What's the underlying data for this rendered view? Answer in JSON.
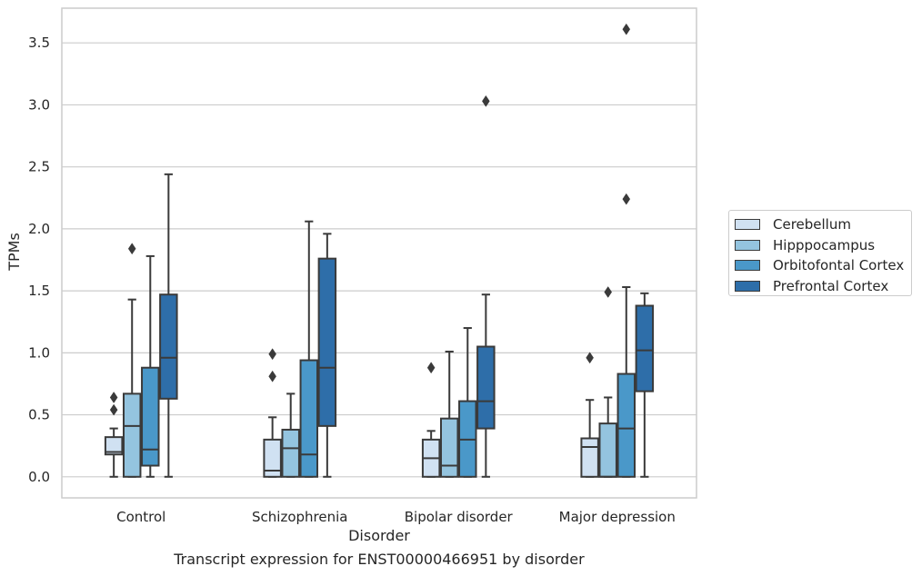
{
  "caption": "Transcript expression for ENST00000466951 by disorder",
  "legend": {
    "items": [
      {
        "label": "Cerebellum",
        "color": "#d0e1f2"
      },
      {
        "label": "Hipppocampus",
        "color": "#94c4df"
      },
      {
        "label": "Orbitofontal Cortex",
        "color": "#4a98c9"
      },
      {
        "label": "Prefrontal Cortex",
        "color": "#2e6ea9"
      }
    ]
  },
  "chart_data": {
    "type": "box",
    "title": "",
    "xlabel": "Disorder",
    "ylabel": "TPMs",
    "ylim": [
      -0.17,
      3.78
    ],
    "yticks": [
      "0.0",
      "0.5",
      "1.0",
      "1.5",
      "2.0",
      "2.5",
      "3.0",
      "3.5"
    ],
    "grid": "horizontal",
    "legend_position": "right",
    "categories": [
      "Control",
      "Schizophrenia",
      "Bipolar disorder",
      "Major depression"
    ],
    "series": [
      {
        "name": "Cerebellum",
        "boxes": [
          {
            "whisker_low": 0.0,
            "q1": 0.18,
            "median": 0.2,
            "q3": 0.32,
            "whisker_high": 0.39,
            "outliers": [
              0.54,
              0.64
            ]
          },
          {
            "whisker_low": 0.0,
            "q1": 0.0,
            "median": 0.05,
            "q3": 0.3,
            "whisker_high": 0.48,
            "outliers": [
              0.81,
              0.99
            ]
          },
          {
            "whisker_low": 0.0,
            "q1": 0.0,
            "median": 0.15,
            "q3": 0.3,
            "whisker_high": 0.37,
            "outliers": [
              0.88
            ]
          },
          {
            "whisker_low": 0.0,
            "q1": 0.0,
            "median": 0.24,
            "q3": 0.31,
            "whisker_high": 0.62,
            "outliers": [
              0.96
            ]
          }
        ]
      },
      {
        "name": "Hipppocampus",
        "boxes": [
          {
            "whisker_low": 0.0,
            "q1": 0.0,
            "median": 0.41,
            "q3": 0.67,
            "whisker_high": 1.43,
            "outliers": [
              1.84
            ]
          },
          {
            "whisker_low": 0.0,
            "q1": 0.0,
            "median": 0.23,
            "q3": 0.38,
            "whisker_high": 0.67,
            "outliers": []
          },
          {
            "whisker_low": 0.0,
            "q1": 0.0,
            "median": 0.09,
            "q3": 0.47,
            "whisker_high": 1.01,
            "outliers": []
          },
          {
            "whisker_low": 0.0,
            "q1": 0.0,
            "median": 0.0,
            "q3": 0.43,
            "whisker_high": 0.64,
            "outliers": [
              1.49
            ]
          }
        ]
      },
      {
        "name": "Orbitofontal Cortex",
        "boxes": [
          {
            "whisker_low": 0.0,
            "q1": 0.09,
            "median": 0.22,
            "q3": 0.88,
            "whisker_high": 1.78,
            "outliers": []
          },
          {
            "whisker_low": 0.0,
            "q1": 0.0,
            "median": 0.18,
            "q3": 0.94,
            "whisker_high": 2.06,
            "outliers": []
          },
          {
            "whisker_low": 0.0,
            "q1": 0.0,
            "median": 0.3,
            "q3": 0.61,
            "whisker_high": 1.2,
            "outliers": []
          },
          {
            "whisker_low": 0.0,
            "q1": 0.0,
            "median": 0.39,
            "q3": 0.83,
            "whisker_high": 1.53,
            "outliers": [
              2.24,
              3.61
            ]
          }
        ]
      },
      {
        "name": "Prefrontal Cortex",
        "boxes": [
          {
            "whisker_low": 0.0,
            "q1": 0.63,
            "median": 0.96,
            "q3": 1.47,
            "whisker_high": 2.44,
            "outliers": []
          },
          {
            "whisker_low": 0.0,
            "q1": 0.41,
            "median": 0.88,
            "q3": 1.76,
            "whisker_high": 1.96,
            "outliers": []
          },
          {
            "whisker_low": 0.0,
            "q1": 0.39,
            "median": 0.61,
            "q3": 1.05,
            "whisker_high": 1.47,
            "outliers": [
              3.03
            ]
          },
          {
            "whisker_low": 0.0,
            "q1": 0.69,
            "median": 1.02,
            "q3": 1.38,
            "whisker_high": 1.48,
            "outliers": []
          }
        ]
      }
    ]
  }
}
